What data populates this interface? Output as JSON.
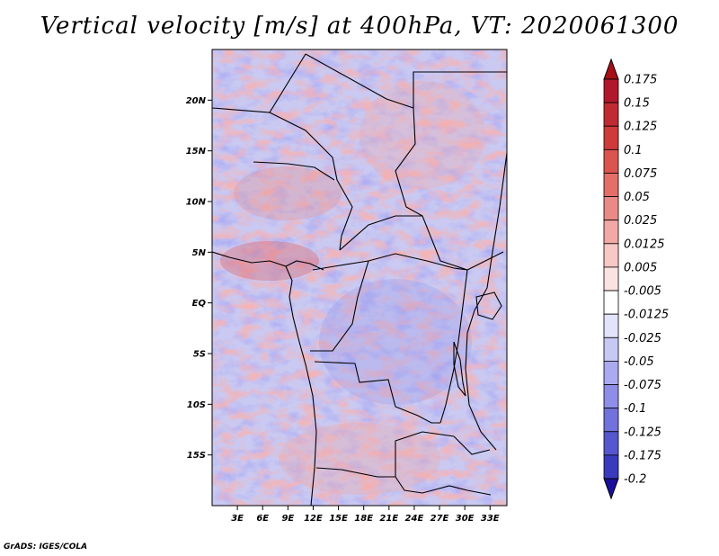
{
  "title": "Vertical velocity [m/s] at 400hPa, VT: 2020061300",
  "credit": "GrADS: IGES/COLA",
  "map": {
    "region": "Central Africa",
    "lon_range": [
      0,
      35
    ],
    "lat_range": [
      -20,
      25
    ],
    "lat_ticks": [
      {
        "value": 20,
        "label": "20N"
      },
      {
        "value": 15,
        "label": "15N"
      },
      {
        "value": 10,
        "label": "10N"
      },
      {
        "value": 5,
        "label": "5N"
      },
      {
        "value": 0,
        "label": "EQ"
      },
      {
        "value": -5,
        "label": "5S"
      },
      {
        "value": -10,
        "label": "10S"
      },
      {
        "value": -15,
        "label": "15S"
      }
    ],
    "lon_ticks": [
      {
        "value": 3,
        "label": "3E"
      },
      {
        "value": 6,
        "label": "6E"
      },
      {
        "value": 9,
        "label": "9E"
      },
      {
        "value": 12,
        "label": "12E"
      },
      {
        "value": 15,
        "label": "15E"
      },
      {
        "value": 18,
        "label": "18E"
      },
      {
        "value": 21,
        "label": "21E"
      },
      {
        "value": 24,
        "label": "24E"
      },
      {
        "value": 27,
        "label": "27E"
      },
      {
        "value": 30,
        "label": "30E"
      },
      {
        "value": 33,
        "label": "33E"
      }
    ]
  },
  "colorbar": {
    "levels": [
      {
        "label": "0.175",
        "color": "#b2182b"
      },
      {
        "label": "0.15",
        "color": "#c02a32"
      },
      {
        "label": "0.125",
        "color": "#cd3b3b"
      },
      {
        "label": "0.1",
        "color": "#da5550"
      },
      {
        "label": "0.075",
        "color": "#e36f68"
      },
      {
        "label": "0.05",
        "color": "#ea8a86"
      },
      {
        "label": "0.025",
        "color": "#f2a8a5"
      },
      {
        "label": "0.0125",
        "color": "#f8c8c6"
      },
      {
        "label": "0.005",
        "color": "#fbe3e2"
      },
      {
        "label": "-0.005",
        "color": "#ffffff"
      },
      {
        "label": "-0.0125",
        "color": "#e3e3fb"
      },
      {
        "label": "-0.025",
        "color": "#c8c8f5"
      },
      {
        "label": "-0.05",
        "color": "#aaaaf0"
      },
      {
        "label": "-0.075",
        "color": "#8e8ee8"
      },
      {
        "label": "-0.1",
        "color": "#7272dc"
      },
      {
        "label": "-0.125",
        "color": "#5656cf"
      },
      {
        "label": "-0.175",
        "color": "#3a3abf"
      },
      {
        "label": "-0.2",
        "color": "#2020a8"
      }
    ],
    "over_color": "#a50f15",
    "under_color": "#1a0f99"
  }
}
